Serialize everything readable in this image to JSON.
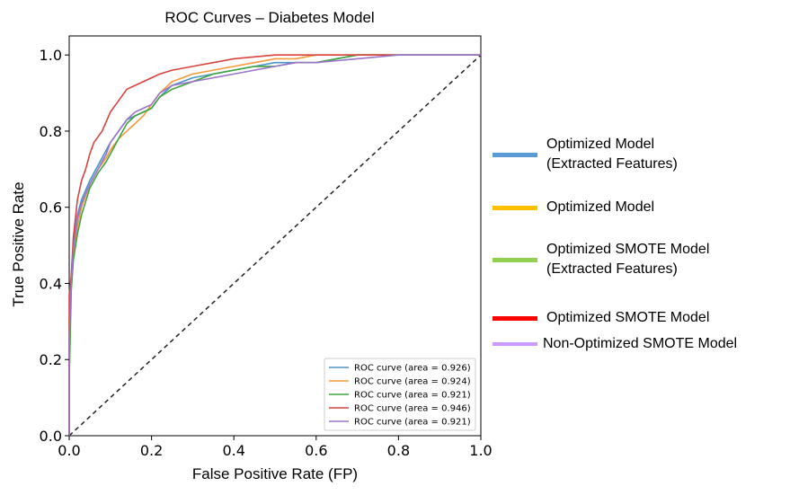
{
  "chart_data": {
    "type": "line",
    "title": "ROC Curves – Diabetes Model",
    "xlabel": "False Positive Rate (FP)",
    "ylabel": "True Positive Rate",
    "xlim": [
      0.0,
      1.0
    ],
    "ylim": [
      0.0,
      1.05
    ],
    "xticks": [
      "0.0",
      "0.2",
      "0.4",
      "0.6",
      "0.8",
      "1.0"
    ],
    "yticks": [
      "0.0",
      "0.2",
      "0.4",
      "0.6",
      "0.8",
      "1.0"
    ],
    "grid": false,
    "legend_position": "lower-right",
    "baseline": {
      "x": [
        0,
        1
      ],
      "y": [
        0,
        1
      ],
      "color": "#222222"
    },
    "series": [
      {
        "name": "ROC curve (area = 0.926)",
        "color": "#4c93c7",
        "x": [
          0,
          0,
          0.005,
          0.01,
          0.02,
          0.03,
          0.05,
          0.07,
          0.09,
          0.1,
          0.12,
          0.14,
          0.16,
          0.18,
          0.2,
          0.22,
          0.25,
          0.3,
          0.35,
          0.4,
          0.45,
          0.5,
          0.55,
          0.6,
          0.65,
          0.7,
          0.8,
          0.9,
          1.0
        ],
        "y": [
          0,
          0.26,
          0.42,
          0.5,
          0.58,
          0.62,
          0.67,
          0.71,
          0.75,
          0.77,
          0.8,
          0.83,
          0.84,
          0.85,
          0.86,
          0.89,
          0.92,
          0.94,
          0.95,
          0.96,
          0.97,
          0.98,
          0.98,
          0.98,
          0.99,
          1.0,
          1.0,
          1.0,
          1.0
        ]
      },
      {
        "name": "ROC curve (area = 0.924)",
        "color": "#f39a3c",
        "x": [
          0,
          0,
          0.005,
          0.01,
          0.02,
          0.03,
          0.05,
          0.07,
          0.09,
          0.1,
          0.12,
          0.14,
          0.16,
          0.18,
          0.2,
          0.22,
          0.25,
          0.3,
          0.35,
          0.4,
          0.45,
          0.5,
          0.55,
          0.6,
          0.7,
          0.8,
          0.9,
          1.0
        ],
        "y": [
          0,
          0.3,
          0.4,
          0.47,
          0.55,
          0.6,
          0.66,
          0.7,
          0.73,
          0.75,
          0.78,
          0.8,
          0.82,
          0.84,
          0.87,
          0.9,
          0.93,
          0.95,
          0.96,
          0.97,
          0.98,
          0.99,
          0.99,
          1.0,
          1.0,
          1.0,
          1.0,
          1.0
        ]
      },
      {
        "name": "ROC curve (area = 0.921)",
        "color": "#3fa53f",
        "x": [
          0,
          0,
          0.005,
          0.01,
          0.02,
          0.03,
          0.05,
          0.07,
          0.09,
          0.1,
          0.12,
          0.14,
          0.16,
          0.18,
          0.2,
          0.22,
          0.25,
          0.3,
          0.35,
          0.4,
          0.45,
          0.5,
          0.55,
          0.6,
          0.65,
          0.7,
          0.8,
          0.9,
          1.0
        ],
        "y": [
          0,
          0.15,
          0.38,
          0.46,
          0.53,
          0.58,
          0.65,
          0.69,
          0.72,
          0.74,
          0.78,
          0.82,
          0.84,
          0.85,
          0.86,
          0.89,
          0.91,
          0.93,
          0.95,
          0.96,
          0.97,
          0.97,
          0.98,
          0.98,
          0.99,
          1.0,
          1.0,
          1.0,
          1.0
        ]
      },
      {
        "name": "ROC curve (area = 0.946)",
        "color": "#d8443d",
        "x": [
          0,
          0,
          0.005,
          0.01,
          0.02,
          0.03,
          0.04,
          0.05,
          0.06,
          0.08,
          0.1,
          0.12,
          0.14,
          0.16,
          0.18,
          0.2,
          0.22,
          0.25,
          0.3,
          0.35,
          0.4,
          0.5,
          0.6,
          0.7,
          0.8,
          0.9,
          1.0
        ],
        "y": [
          0,
          0.37,
          0.42,
          0.52,
          0.62,
          0.67,
          0.7,
          0.74,
          0.77,
          0.8,
          0.85,
          0.88,
          0.91,
          0.92,
          0.93,
          0.94,
          0.95,
          0.96,
          0.97,
          0.98,
          0.99,
          1.0,
          1.0,
          1.0,
          1.0,
          1.0,
          1.0
        ]
      },
      {
        "name": "ROC curve (area = 0.921)",
        "color": "#9b74c9",
        "x": [
          0,
          0,
          0.005,
          0.01,
          0.02,
          0.03,
          0.05,
          0.07,
          0.09,
          0.1,
          0.12,
          0.14,
          0.16,
          0.18,
          0.2,
          0.22,
          0.25,
          0.3,
          0.35,
          0.4,
          0.45,
          0.5,
          0.55,
          0.6,
          0.7,
          0.8,
          0.9,
          1.0
        ],
        "y": [
          0,
          0.25,
          0.4,
          0.49,
          0.57,
          0.61,
          0.66,
          0.7,
          0.74,
          0.77,
          0.8,
          0.83,
          0.85,
          0.86,
          0.87,
          0.9,
          0.92,
          0.93,
          0.94,
          0.95,
          0.96,
          0.97,
          0.98,
          0.98,
          0.99,
          1.0,
          1.0,
          1.0
        ]
      }
    ]
  },
  "side_legend": [
    {
      "label": "Optimized Model\n(Extracted Features)",
      "color": "#5b9bd5"
    },
    {
      "label": "Optimized Model",
      "color": "#ffc000"
    },
    {
      "label": "Optimized SMOTE Model\n(Extracted Features)",
      "color": "#92d050"
    },
    {
      "label": "Optimized SMOTE Model",
      "color": "#ff0000"
    },
    {
      "label": "Non-Optimized SMOTE Model",
      "color": "#cc99ff"
    }
  ]
}
